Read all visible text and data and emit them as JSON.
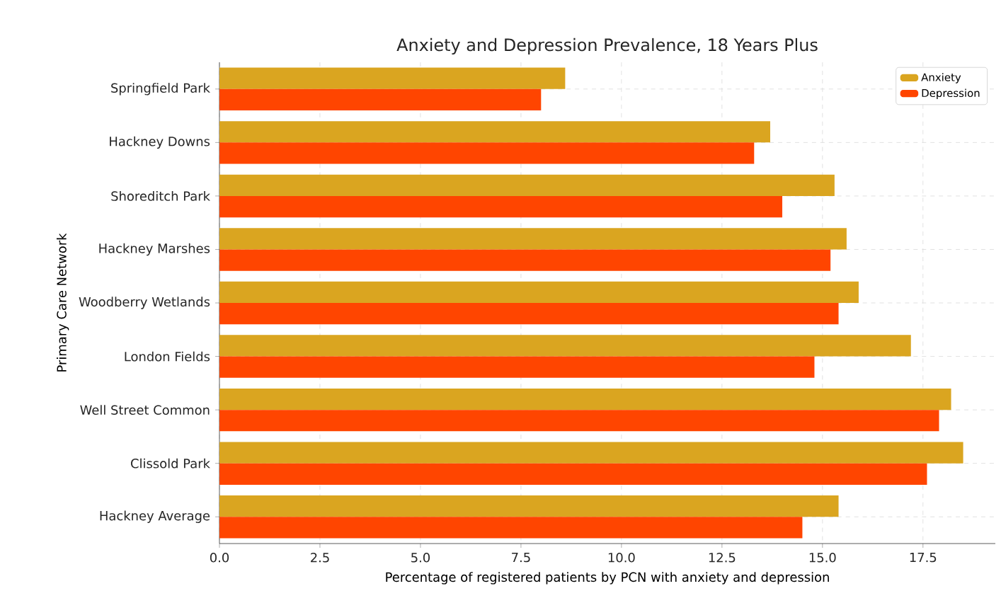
{
  "chart_data": {
    "type": "bar",
    "orientation": "horizontal",
    "title": "Anxiety and Depression Prevalence, 18 Years Plus",
    "xlabel": "Percentage of registered patients by PCN with anxiety and depression",
    "ylabel": "Primary Care Network",
    "categories": [
      "Springfield Park",
      "Hackney Downs",
      "Shoreditch Park",
      "Hackney Marshes",
      "Woodberry Wetlands",
      "London Fields",
      "Well Street Common",
      "Clissold Park",
      "Hackney Average"
    ],
    "series": [
      {
        "name": "Anxiety",
        "color": "#daa520",
        "values": [
          8.6,
          13.7,
          15.3,
          15.6,
          15.9,
          17.2,
          18.2,
          18.5,
          15.4
        ]
      },
      {
        "name": "Depression",
        "color": "#ff4500",
        "values": [
          8.0,
          13.3,
          14.0,
          15.2,
          15.4,
          14.8,
          17.9,
          17.6,
          14.5
        ]
      }
    ],
    "xlim": [
      0,
      19.3
    ],
    "xticks": [
      {
        "value": 0,
        "label": "0.0"
      },
      {
        "value": 2.5,
        "label": "2.5"
      },
      {
        "value": 5,
        "label": "5.0"
      },
      {
        "value": 7.5,
        "label": "7.5"
      },
      {
        "value": 10,
        "label": "10.0"
      },
      {
        "value": 12.5,
        "label": "12.5"
      },
      {
        "value": 15,
        "label": "15.0"
      },
      {
        "value": 17.5,
        "label": "17.5"
      }
    ],
    "grid": true,
    "legend": "top right"
  }
}
